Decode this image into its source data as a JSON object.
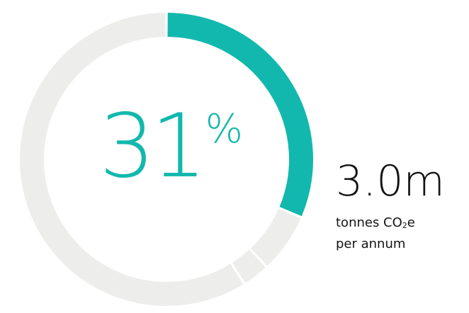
{
  "chart_data": {
    "type": "pie",
    "style": "donut",
    "highlight": {
      "value": 31,
      "unit": "%",
      "color": "#12b8ad"
    },
    "segments": [
      {
        "value": 31,
        "color": "#12b8ad",
        "highlighted": true
      },
      {
        "value": 6.5,
        "color": "#ededec",
        "highlighted": false
      },
      {
        "value": 3,
        "color": "#ededec",
        "highlighted": false
      },
      {
        "value": 58,
        "color": "#ededec",
        "highlighted": false
      }
    ],
    "center_label": {
      "number": "31",
      "sign": "%"
    }
  },
  "annotation": {
    "value": "3.0m",
    "unit_prefix": "tonnes CO",
    "unit_subscript": "2",
    "unit_suffix": "e",
    "period": "per annum"
  }
}
